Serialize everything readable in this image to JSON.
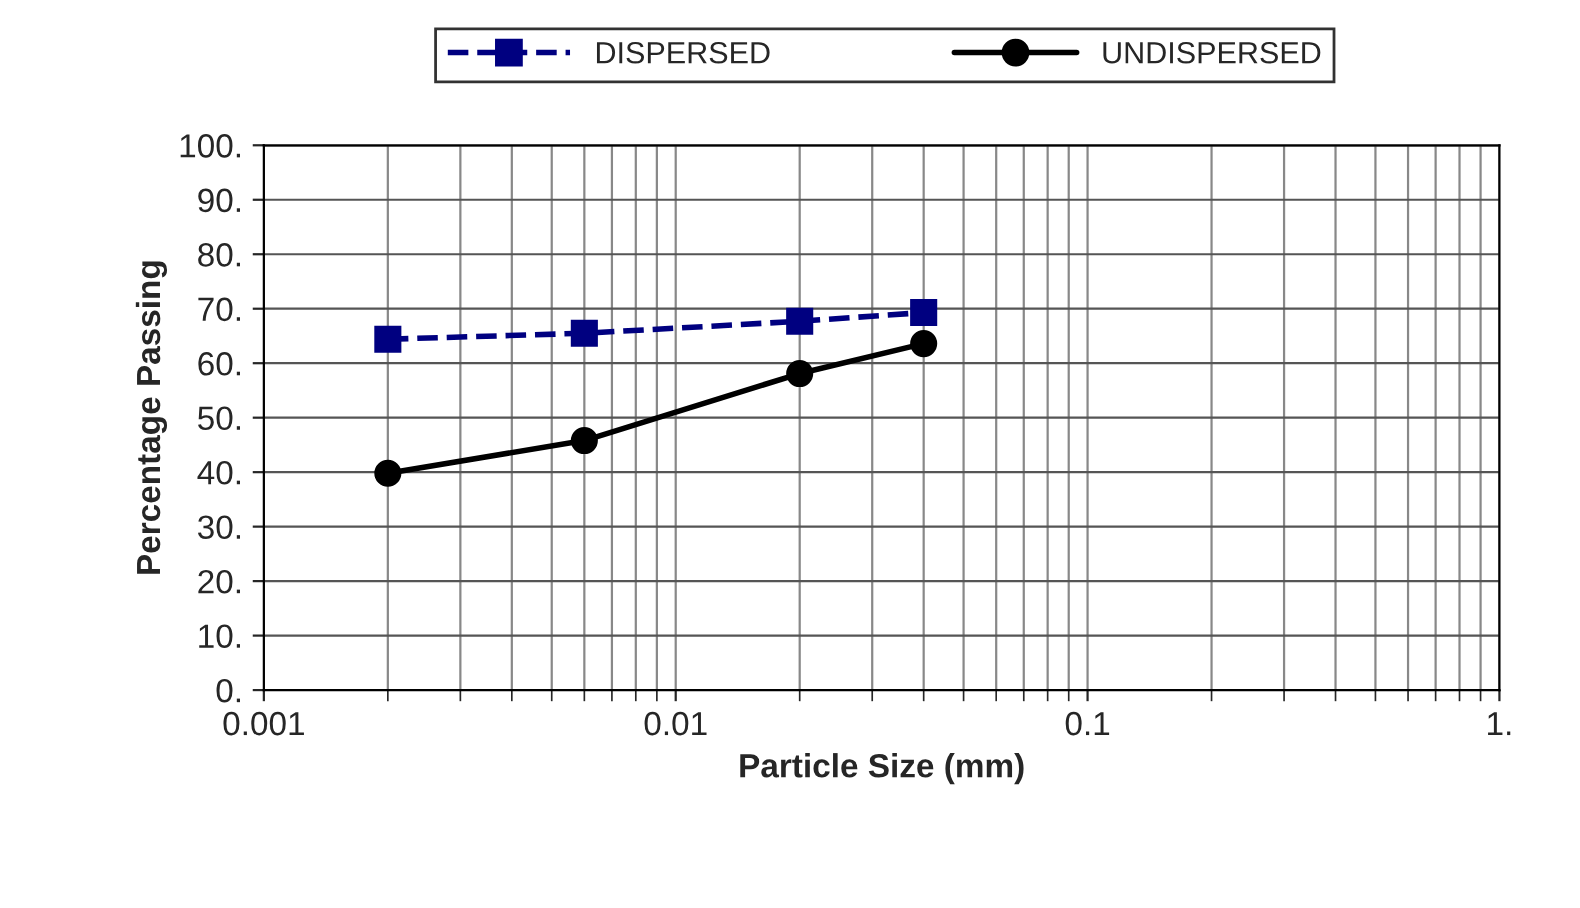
{
  "chart_data": {
    "type": "line",
    "xlabel": "Particle Size (mm)",
    "ylabel": "Percentage Passing",
    "log": "x",
    "grid": true,
    "legend": "top",
    "xlim": [
      0.001,
      1
    ],
    "xticks": [
      0.001,
      0.01,
      0.1,
      {
        "value": 1,
        "label": "1."
      }
    ],
    "ylim": [
      0,
      100
    ],
    "yticks": [
      {
        "value": 0,
        "label": "0."
      },
      {
        "value": 10,
        "label": "10."
      },
      {
        "value": 20,
        "label": "20."
      },
      {
        "value": 30,
        "label": "30."
      },
      {
        "value": 40,
        "label": "40."
      },
      {
        "value": 50,
        "label": "50."
      },
      {
        "value": 60,
        "label": "60."
      },
      {
        "value": 70,
        "label": "70."
      },
      {
        "value": 80,
        "label": "80."
      },
      {
        "value": 90,
        "label": "90."
      },
      {
        "value": 100,
        "label": "100."
      }
    ],
    "x": [
      0.002,
      0.006,
      0.02,
      0.04
    ],
    "series": [
      {
        "name": "DISPERSED",
        "color": "#000080",
        "marker": "square",
        "line_style": "dashed",
        "values": [
          64.4,
          65.5,
          67.7,
          69.3
        ]
      },
      {
        "name": "UNDISPERSED",
        "color": "#000000",
        "marker": "circle",
        "line_style": "solid",
        "values": [
          39.8,
          45.8,
          58.1,
          63.6
        ]
      }
    ]
  }
}
